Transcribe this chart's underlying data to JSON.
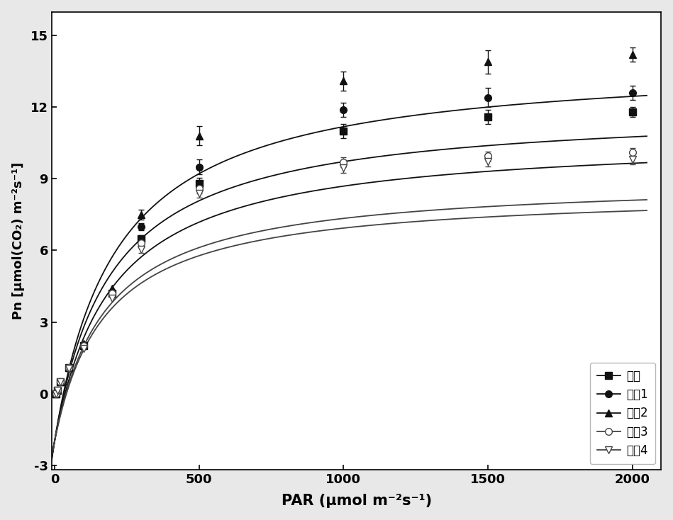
{
  "title": "",
  "xlabel": "PAR (μmol m⁻²s⁻¹)",
  "ylabel": "Pn [μmol(CO₂) m⁻²s⁻¹]",
  "xlim": [
    -10,
    2100
  ],
  "ylim": [
    -3.2,
    16
  ],
  "yticks": [
    -3,
    0,
    3,
    6,
    9,
    12,
    15
  ],
  "xticks": [
    0,
    500,
    1000,
    1500,
    2000
  ],
  "background_color": "#e8e8e8",
  "plot_bg": "#ffffff",
  "series": [
    {
      "label": "对照",
      "marker": "s",
      "filled": true,
      "color": "#111111",
      "Pmax": 12.8,
      "alpha": 0.065,
      "Rd": 2.0,
      "x_markers": [
        5,
        10,
        20,
        50,
        100,
        200,
        300,
        500,
        1000,
        1500,
        2000
      ],
      "y_markers": [
        0.0,
        0.15,
        0.5,
        1.1,
        2.0,
        4.2,
        6.5,
        8.8,
        11.0,
        11.6,
        11.8
      ],
      "yerr": [
        0.0,
        0.0,
        0.0,
        0.0,
        0.0,
        0.0,
        0.15,
        0.25,
        0.3,
        0.3,
        0.2
      ]
    },
    {
      "label": "处理1",
      "marker": "o",
      "filled": true,
      "color": "#111111",
      "Pmax": 14.0,
      "alpha": 0.072,
      "Rd": 2.0,
      "x_markers": [
        5,
        10,
        20,
        50,
        100,
        200,
        300,
        500,
        1000,
        1500,
        2000
      ],
      "y_markers": [
        0.0,
        0.15,
        0.5,
        1.1,
        2.0,
        4.2,
        7.0,
        9.5,
        11.9,
        12.4,
        12.6
      ],
      "yerr": [
        0.0,
        0.0,
        0.0,
        0.0,
        0.0,
        0.0,
        0.15,
        0.3,
        0.3,
        0.4,
        0.3
      ]
    },
    {
      "label": "处理2",
      "marker": "^",
      "filled": true,
      "color": "#111111",
      "Pmax": 16.0,
      "alpha": 0.075,
      "Rd": 2.0,
      "x_markers": [
        5,
        10,
        20,
        50,
        100,
        200,
        300,
        500,
        1000,
        1500,
        2000
      ],
      "y_markers": [
        0.0,
        0.15,
        0.5,
        1.1,
        2.1,
        4.4,
        7.5,
        10.8,
        13.1,
        13.9,
        14.2
      ],
      "yerr": [
        0.0,
        0.0,
        0.0,
        0.0,
        0.0,
        0.0,
        0.2,
        0.4,
        0.4,
        0.5,
        0.3
      ]
    },
    {
      "label": "处理3",
      "marker": "o",
      "filled": false,
      "color": "#444444",
      "Pmax": 11.0,
      "alpha": 0.062,
      "Rd": 2.0,
      "x_markers": [
        5,
        10,
        20,
        50,
        100,
        200,
        300,
        500,
        1000,
        1500,
        2000
      ],
      "y_markers": [
        0.0,
        0.15,
        0.5,
        1.1,
        2.0,
        4.2,
        6.3,
        8.6,
        9.7,
        9.95,
        10.1
      ],
      "yerr": [
        0.0,
        0.0,
        0.0,
        0.0,
        0.0,
        0.0,
        0.15,
        0.2,
        0.2,
        0.2,
        0.2
      ]
    },
    {
      "label": "处理4",
      "marker": "v",
      "filled": false,
      "color": "#444444",
      "Pmax": 10.5,
      "alpha": 0.06,
      "Rd": 2.0,
      "x_markers": [
        5,
        10,
        20,
        50,
        100,
        200,
        300,
        500,
        1000,
        1500,
        2000
      ],
      "y_markers": [
        0.0,
        0.15,
        0.5,
        1.05,
        1.9,
        4.0,
        6.05,
        8.4,
        9.45,
        9.72,
        9.82
      ],
      "yerr": [
        0.0,
        0.0,
        0.0,
        0.0,
        0.0,
        0.0,
        0.15,
        0.2,
        0.2,
        0.2,
        0.2
      ]
    }
  ]
}
